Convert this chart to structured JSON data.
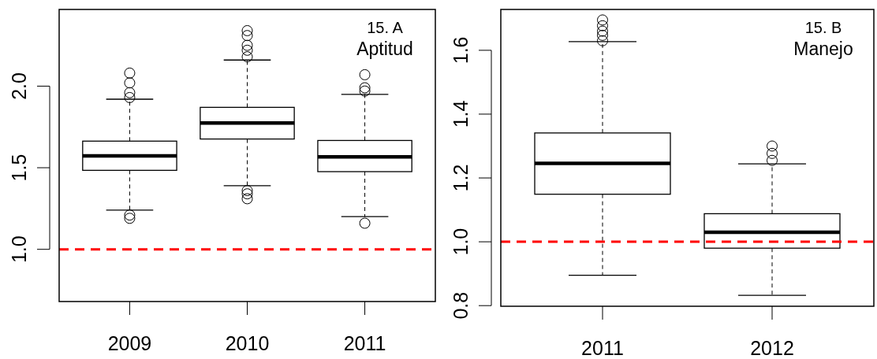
{
  "chart_data": [
    {
      "type": "box",
      "categories": [
        "2009",
        "2010",
        "2011"
      ],
      "ylim": [
        0.68,
        2.47
      ],
      "yticks": [
        {
          "value": 1.0,
          "label": "1.0"
        },
        {
          "value": 1.5,
          "label": "1.5"
        },
        {
          "value": 2.0,
          "label": "2.0"
        }
      ],
      "boxes": [
        {
          "low": 1.24,
          "q1": 1.484,
          "median": 1.572,
          "q3": 1.663,
          "high": 1.92,
          "outliers": [
            2.08,
            2.02,
            1.96,
            1.93,
            1.21,
            1.19
          ]
        },
        {
          "low": 1.39,
          "q1": 1.676,
          "median": 1.774,
          "q3": 1.87,
          "high": 2.16,
          "outliers": [
            2.34,
            2.31,
            2.25,
            2.22,
            2.18,
            1.36,
            1.34,
            1.31
          ]
        },
        {
          "low": 1.2,
          "q1": 1.476,
          "median": 1.567,
          "q3": 1.667,
          "high": 1.95,
          "outliers": [
            2.07,
            1.99,
            1.97,
            1.16
          ]
        }
      ],
      "ref_lines": [
        {
          "axis": "y",
          "value": 1.0,
          "color": "#ff0000",
          "line_style": "dashed"
        }
      ],
      "annotations": [
        "15. A",
        "Aptitud"
      ]
    },
    {
      "type": "box",
      "categories": [
        "2011",
        "2012"
      ],
      "ylim": [
        0.798,
        1.728
      ],
      "yticks": [
        {
          "value": 0.8,
          "label": "0.8"
        },
        {
          "value": 1.0,
          "label": "1.0"
        },
        {
          "value": 1.2,
          "label": "1.2"
        },
        {
          "value": 1.4,
          "label": "1.4"
        },
        {
          "value": 1.6,
          "label": "1.6"
        }
      ],
      "boxes": [
        {
          "low": 0.895,
          "q1": 1.149,
          "median": 1.246,
          "q3": 1.341,
          "high": 1.627,
          "outliers": [
            1.695,
            1.677,
            1.66,
            1.647,
            1.63
          ]
        },
        {
          "low": 0.832,
          "q1": 0.98,
          "median": 1.03,
          "q3": 1.088,
          "high": 1.244,
          "outliers": [
            1.3,
            1.277,
            1.255
          ]
        }
      ],
      "ref_lines": [
        {
          "axis": "y",
          "value": 1.0,
          "color": "#ff0000",
          "line_style": "dashed"
        }
      ],
      "annotations": [
        "15. B",
        "Manejo"
      ]
    }
  ]
}
